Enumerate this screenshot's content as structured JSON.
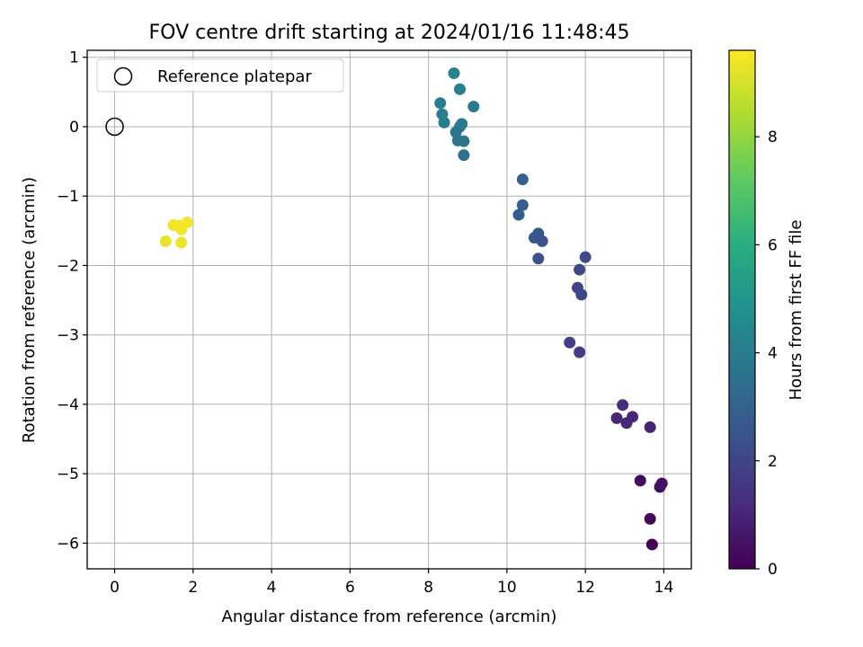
{
  "chart_data": {
    "type": "scatter",
    "title": "FOV centre drift starting at 2024/01/16 11:48:45",
    "xlabel": "Angular distance from reference (arcmin)",
    "ylabel": "Rotation from reference (arcmin)",
    "xlim": [
      -0.7,
      14.7
    ],
    "ylim": [
      -6.37,
      1.1
    ],
    "xticks": [
      0,
      2,
      4,
      6,
      8,
      10,
      12,
      14
    ],
    "xtick_labels": [
      "0",
      "2",
      "4",
      "6",
      "8",
      "10",
      "12",
      "14"
    ],
    "yticks": [
      1,
      0,
      -1,
      -2,
      -3,
      -4,
      -5,
      -6
    ],
    "ytick_labels": [
      "1",
      "0",
      "−1",
      "−2",
      "−3",
      "−4",
      "−5",
      "−6"
    ],
    "grid": true,
    "legend": {
      "placement": "top-left",
      "entries": [
        {
          "label": "Reference platepar",
          "marker": "hollow-circle"
        }
      ]
    },
    "reference_point": {
      "x": 0,
      "y": 0
    },
    "colorbar": {
      "label": "Hours from first FF file",
      "colormap": "viridis",
      "range": [
        0,
        9.6
      ],
      "ticks": [
        0,
        2,
        4,
        6,
        8
      ],
      "tick_labels": [
        "0",
        "2",
        "4",
        "6",
        "8"
      ]
    },
    "points": [
      {
        "x": 13.7,
        "y": -6.02,
        "c": 0.1
      },
      {
        "x": 13.65,
        "y": -5.65,
        "c": 0.2
      },
      {
        "x": 13.4,
        "y": -5.1,
        "c": 0.3
      },
      {
        "x": 13.9,
        "y": -5.19,
        "c": 0.35
      },
      {
        "x": 13.95,
        "y": -5.14,
        "c": 0.4
      },
      {
        "x": 13.65,
        "y": -4.33,
        "c": 0.9
      },
      {
        "x": 12.8,
        "y": -4.2,
        "c": 1.0
      },
      {
        "x": 13.05,
        "y": -4.27,
        "c": 1.05
      },
      {
        "x": 13.2,
        "y": -4.18,
        "c": 1.1
      },
      {
        "x": 12.95,
        "y": -4.01,
        "c": 1.2
      },
      {
        "x": 11.85,
        "y": -3.25,
        "c": 1.7
      },
      {
        "x": 11.6,
        "y": -3.11,
        "c": 1.8
      },
      {
        "x": 11.9,
        "y": -2.42,
        "c": 2.0
      },
      {
        "x": 11.8,
        "y": -2.32,
        "c": 2.05
      },
      {
        "x": 11.85,
        "y": -2.06,
        "c": 2.1
      },
      {
        "x": 12.0,
        "y": -1.88,
        "c": 2.2
      },
      {
        "x": 10.8,
        "y": -1.9,
        "c": 2.4
      },
      {
        "x": 10.9,
        "y": -1.65,
        "c": 2.45
      },
      {
        "x": 10.7,
        "y": -1.6,
        "c": 2.5
      },
      {
        "x": 10.8,
        "y": -1.54,
        "c": 2.55
      },
      {
        "x": 10.3,
        "y": -1.27,
        "c": 2.8
      },
      {
        "x": 10.4,
        "y": -1.13,
        "c": 2.85
      },
      {
        "x": 10.4,
        "y": -0.76,
        "c": 3.0
      },
      {
        "x": 8.9,
        "y": -0.41,
        "c": 3.6
      },
      {
        "x": 8.9,
        "y": -0.21,
        "c": 3.7
      },
      {
        "x": 8.75,
        "y": -0.2,
        "c": 3.75
      },
      {
        "x": 8.7,
        "y": -0.08,
        "c": 3.8
      },
      {
        "x": 8.8,
        "y": 0.0,
        "c": 3.85
      },
      {
        "x": 8.85,
        "y": 0.04,
        "c": 3.9
      },
      {
        "x": 8.4,
        "y": 0.06,
        "c": 4.0
      },
      {
        "x": 8.35,
        "y": 0.18,
        "c": 4.05
      },
      {
        "x": 8.3,
        "y": 0.34,
        "c": 4.1
      },
      {
        "x": 9.15,
        "y": 0.29,
        "c": 4.0
      },
      {
        "x": 8.8,
        "y": 0.54,
        "c": 4.15
      },
      {
        "x": 8.65,
        "y": 0.77,
        "c": 4.2
      },
      {
        "x": 1.3,
        "y": -1.65,
        "c": 9.3
      },
      {
        "x": 1.7,
        "y": -1.67,
        "c": 9.35
      },
      {
        "x": 1.7,
        "y": -1.48,
        "c": 9.4
      },
      {
        "x": 1.5,
        "y": -1.42,
        "c": 9.4
      },
      {
        "x": 1.65,
        "y": -1.43,
        "c": 9.45
      },
      {
        "x": 1.85,
        "y": -1.38,
        "c": 9.5
      }
    ]
  }
}
